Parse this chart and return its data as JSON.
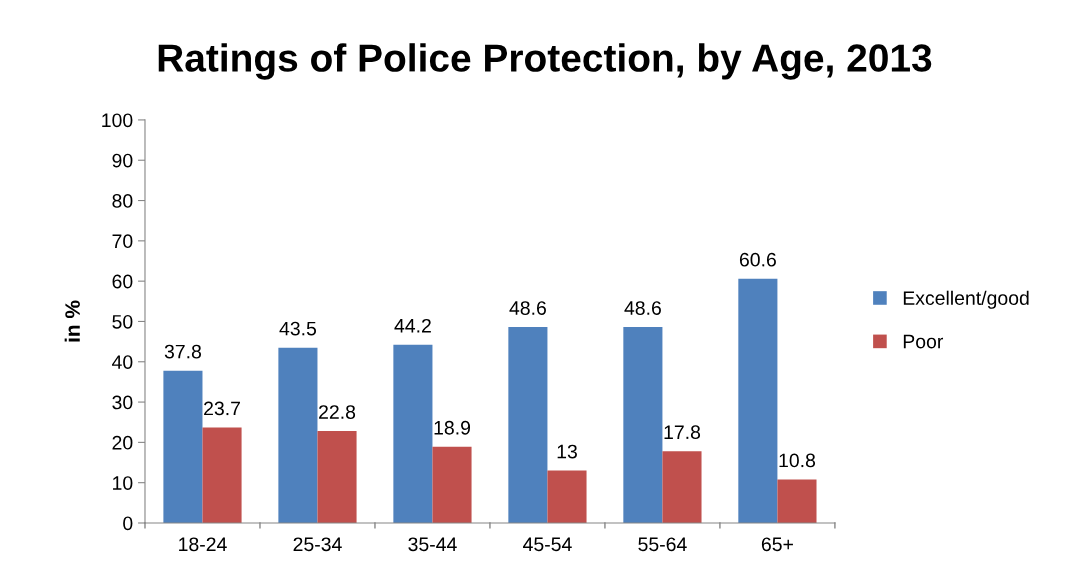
{
  "chart_data": {
    "type": "bar",
    "title": "Ratings of Police Protection, by Age, 2013",
    "ylabel": "in %",
    "categories": [
      "18-24",
      "25-34",
      "35-44",
      "45-54",
      "55-64",
      "65+"
    ],
    "series": [
      {
        "name": "Excellent/good",
        "color": "#4f81bd",
        "values": [
          37.8,
          43.5,
          44.2,
          48.6,
          48.6,
          60.6
        ]
      },
      {
        "name": "Poor",
        "color": "#c0504d",
        "values": [
          23.7,
          22.8,
          18.9,
          13,
          17.8,
          10.8
        ]
      }
    ],
    "ylim": [
      0,
      100
    ],
    "yticks": [
      0,
      10,
      20,
      30,
      40,
      50,
      60,
      70,
      80,
      90,
      100
    ],
    "data_labels": true,
    "grid": false,
    "legend": "right"
  }
}
